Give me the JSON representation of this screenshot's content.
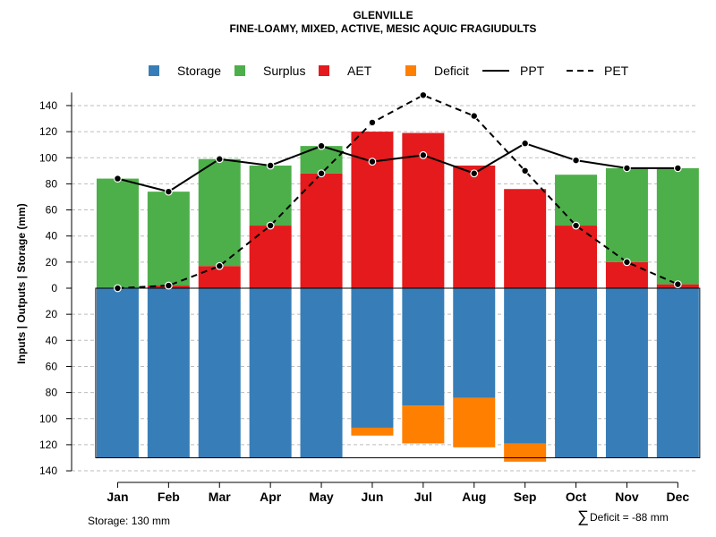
{
  "chart_data": {
    "type": "bar",
    "title": "GLENVILLE",
    "subtitle": "FINE-LOAMY, MIXED, ACTIVE, MESIC AQUIC FRAGIUDULTS",
    "ylabel": "Inputs | Outputs | Storage    (mm)",
    "ylim": [
      -140,
      150
    ],
    "y_ticks": [
      140,
      120,
      100,
      80,
      60,
      40,
      20,
      0,
      20,
      40,
      60,
      80,
      100,
      120,
      140
    ],
    "y_tick_values": [
      140,
      120,
      100,
      80,
      60,
      40,
      20,
      0,
      -20,
      -40,
      -60,
      -80,
      -100,
      -120,
      -140
    ],
    "categories": [
      "Jan",
      "Feb",
      "Mar",
      "Apr",
      "May",
      "Jun",
      "Jul",
      "Aug",
      "Sep",
      "Oct",
      "Nov",
      "Dec"
    ],
    "legend": [
      {
        "name": "Storage",
        "kind": "box",
        "color": "#377EB8"
      },
      {
        "name": "Surplus",
        "kind": "box",
        "color": "#4DAF4A"
      },
      {
        "name": "AET",
        "kind": "box",
        "color": "#E41A1C"
      },
      {
        "name": "Deficit",
        "kind": "box",
        "color": "#FF7F00"
      },
      {
        "name": "PPT",
        "kind": "solid",
        "color": "#000000"
      },
      {
        "name": "PET",
        "kind": "dashed",
        "color": "#000000"
      }
    ],
    "series": [
      {
        "name": "AET",
        "color": "#E41A1C",
        "values": [
          0,
          2,
          17,
          48,
          88,
          120,
          119,
          94,
          76,
          48,
          20,
          3
        ]
      },
      {
        "name": "Surplus",
        "color": "#4DAF4A",
        "values": [
          84,
          72,
          82,
          46,
          21,
          0,
          0,
          0,
          0,
          39,
          72,
          89
        ]
      },
      {
        "name": "Storage",
        "color": "#377EB8",
        "values": [
          130,
          130,
          130,
          130,
          130,
          107,
          90,
          84,
          119,
          130,
          130,
          130
        ]
      },
      {
        "name": "Deficit",
        "color": "#FF7F00",
        "values": [
          0,
          0,
          0,
          0,
          0,
          6,
          29,
          38,
          14,
          0,
          0,
          0
        ]
      },
      {
        "name": "PPT",
        "color": "#000000",
        "values": [
          84,
          74,
          99,
          94,
          109,
          97,
          102,
          88,
          111,
          98,
          92,
          92
        ]
      },
      {
        "name": "PET",
        "color": "#000000",
        "values": [
          0,
          2,
          17,
          48,
          88,
          127,
          148,
          132,
          90,
          48,
          20,
          3
        ]
      }
    ],
    "storage_capacity": 130,
    "notes": {
      "storage": "Storage: 130 mm",
      "deficit_symbol": "∑",
      "deficit": "Deficit = -88 mm"
    }
  }
}
